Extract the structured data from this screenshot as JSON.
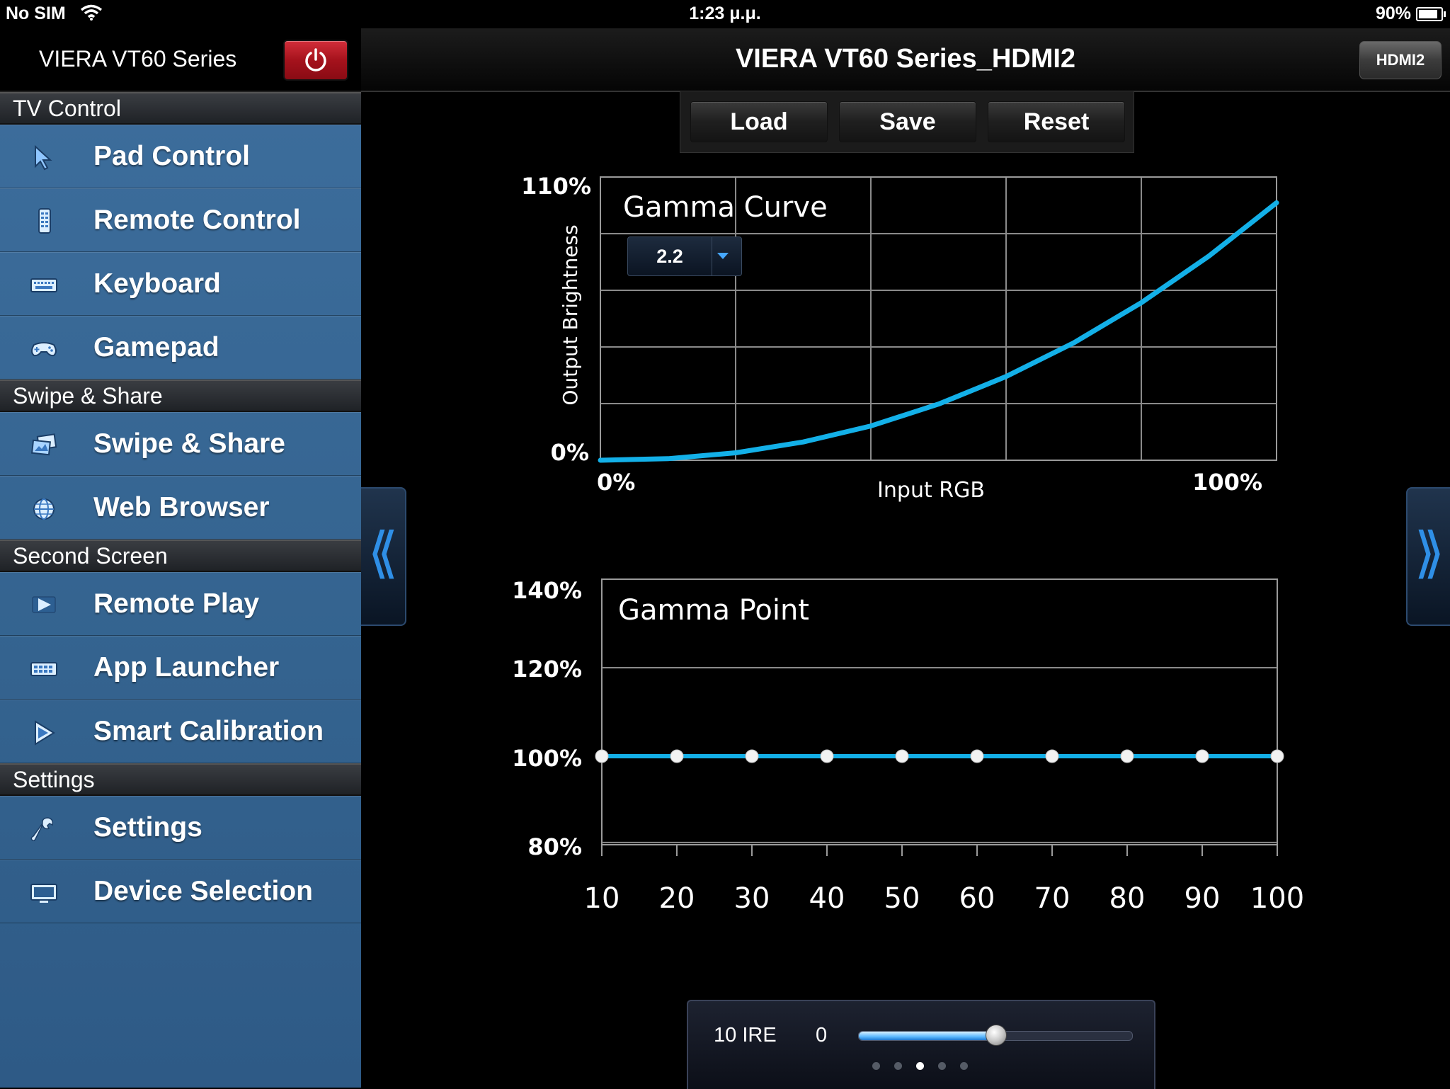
{
  "status_bar": {
    "carrier": "No SIM",
    "time": "1:23 μ.μ.",
    "battery": "90%",
    "battery_level": 0.9
  },
  "sidebar": {
    "title": "VIERA VT60 Series",
    "sections": [
      {
        "title": "TV Control",
        "items": [
          {
            "label": "Pad Control",
            "icon": "cursor-icon"
          },
          {
            "label": "Remote Control",
            "icon": "remote-icon"
          },
          {
            "label": "Keyboard",
            "icon": "keyboard-icon"
          },
          {
            "label": "Gamepad",
            "icon": "gamepad-icon"
          }
        ]
      },
      {
        "title": "Swipe & Share",
        "items": [
          {
            "label": "Swipe & Share",
            "icon": "swipe-share-icon"
          },
          {
            "label": "Web Browser",
            "icon": "globe-icon"
          }
        ]
      },
      {
        "title": "Second Screen",
        "items": [
          {
            "label": "Remote Play",
            "icon": "play-icon"
          },
          {
            "label": "App Launcher",
            "icon": "app-launcher-icon"
          },
          {
            "label": "Smart Calibration",
            "icon": "calibration-icon"
          }
        ]
      },
      {
        "title": "Settings",
        "items": [
          {
            "label": "Settings",
            "icon": "wrench-icon"
          },
          {
            "label": "Device Selection",
            "icon": "monitor-icon"
          }
        ]
      }
    ]
  },
  "header": {
    "title": "VIERA VT60 Series_HDMI2",
    "input_button": "HDMI2"
  },
  "toolbar": {
    "load": "Load",
    "save": "Save",
    "reset": "Reset"
  },
  "nav": {
    "prev_glyph": "⟪",
    "next_glyph": "⟫"
  },
  "gamma_select": {
    "value": "2.2"
  },
  "chart_data": [
    {
      "type": "line",
      "title": "Gamma Curve",
      "xlabel": "Input RGB",
      "ylabel": "Output Brightness",
      "x_tick_labels": [
        "0%",
        "100%"
      ],
      "y_tick_labels": [
        "0%",
        "110%"
      ],
      "xlim": [
        0,
        100
      ],
      "ylim": [
        0,
        110
      ],
      "gamma": 2.2,
      "x": [
        0,
        10,
        20,
        30,
        40,
        50,
        60,
        70,
        80,
        90,
        100
      ],
      "y": [
        0,
        0.6,
        2.9,
        7.1,
        13.3,
        21.8,
        32.5,
        45.6,
        61.2,
        79.3,
        100
      ],
      "grid": true,
      "series_color": "#13b0e8"
    },
    {
      "type": "line",
      "title": "Gamma Point",
      "xlabel": "",
      "ylabel": "",
      "categories": [
        "10",
        "20",
        "30",
        "40",
        "50",
        "60",
        "70",
        "80",
        "90",
        "100"
      ],
      "y_tick_labels": [
        "140%",
        "120%",
        "100%",
        "80%"
      ],
      "ylim": [
        80,
        140
      ],
      "values": [
        100,
        100,
        100,
        100,
        100,
        100,
        100,
        100,
        100,
        100
      ],
      "grid": true,
      "series_color": "#13b0e8"
    }
  ],
  "bottom_panel": {
    "ire_label": "10 IRE",
    "value": "0",
    "slider_fraction": 0.5,
    "page_count": 5,
    "active_page": 3
  }
}
